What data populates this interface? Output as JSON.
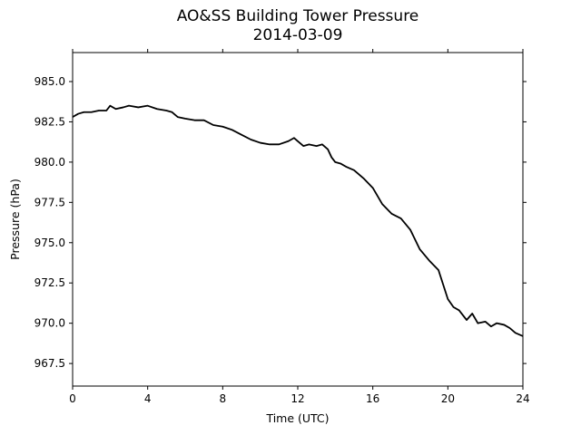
{
  "chart_data": {
    "type": "line",
    "title": "AO&SS Building Tower Pressure",
    "subtitle": "2014-03-09",
    "xlabel": "Time (UTC)",
    "ylabel": "Pressure (hPa)",
    "xlim": [
      0,
      24
    ],
    "ylim": [
      966.1,
      986.8
    ],
    "xticks": [
      "0",
      "4",
      "8",
      "12",
      "16",
      "20",
      "24"
    ],
    "xtick_values": [
      0,
      4,
      8,
      12,
      16,
      20,
      24
    ],
    "yticks": [
      "967.5",
      "970.0",
      "972.5",
      "975.0",
      "977.5",
      "980.0",
      "982.5",
      "985.0"
    ],
    "ytick_values": [
      967.5,
      970.0,
      972.5,
      975.0,
      977.5,
      980.0,
      982.5,
      985.0
    ],
    "grid": false,
    "line_color": "#000000",
    "series": [
      {
        "x": [
          0,
          0.3,
          0.6,
          1.0,
          1.4,
          1.8,
          2.0,
          2.3,
          2.7,
          3.0,
          3.5,
          4.0,
          4.5,
          5.0,
          5.3,
          5.6,
          6.0,
          6.5,
          7.0,
          7.5,
          8.0,
          8.5,
          9.0,
          9.5,
          10.0,
          10.5,
          11.0,
          11.5,
          11.8,
          12.0,
          12.3,
          12.6,
          13.0,
          13.3,
          13.6,
          13.8,
          14.0,
          14.3,
          14.6,
          15.0,
          15.5,
          16.0,
          16.5,
          17.0,
          17.5,
          18.0,
          18.5,
          19.0,
          19.5,
          20.0,
          20.3,
          20.6,
          21.0,
          21.3,
          21.6,
          22.0,
          22.3,
          22.6,
          23.0,
          23.3,
          23.6,
          24.0
        ],
        "y": [
          982.8,
          983.0,
          983.1,
          983.1,
          983.2,
          983.2,
          983.5,
          983.3,
          983.4,
          983.5,
          983.4,
          983.5,
          983.3,
          983.2,
          983.1,
          982.8,
          982.7,
          982.6,
          982.6,
          982.3,
          982.2,
          982.0,
          981.7,
          981.4,
          981.2,
          981.1,
          981.1,
          981.3,
          981.5,
          981.3,
          981.0,
          981.1,
          981.0,
          981.1,
          980.8,
          980.3,
          980.0,
          979.9,
          979.7,
          979.5,
          979.0,
          978.4,
          977.4,
          976.8,
          976.5,
          975.8,
          974.6,
          973.9,
          973.3,
          971.5,
          971.0,
          970.8,
          970.2,
          970.6,
          970.0,
          970.1,
          969.8,
          970.0,
          969.9,
          969.7,
          969.4,
          969.2
        ]
      }
    ]
  }
}
